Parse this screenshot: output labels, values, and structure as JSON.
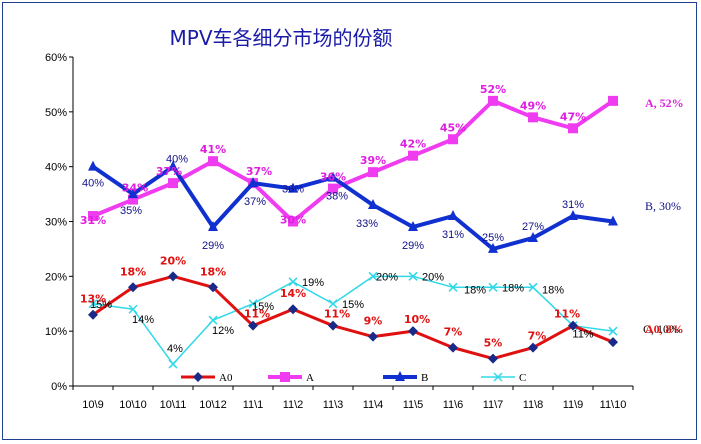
{
  "chart_data": {
    "type": "line",
    "title": "MPV车各细分市场的份额",
    "categories": [
      "10\\9",
      "10\\10",
      "10\\11",
      "10\\12",
      "11\\1",
      "11\\2",
      "11\\3",
      "11\\4",
      "11\\5",
      "11\\6",
      "11\\7",
      "11\\8",
      "11\\9",
      "11\\10"
    ],
    "ylim": [
      0,
      60
    ],
    "y_ticks": [
      "0%",
      "10%",
      "20%",
      "30%",
      "40%",
      "50%",
      "60%"
    ],
    "grid": false,
    "legend_position": "bottom",
    "series": [
      {
        "name": "A0",
        "color": "#e01010",
        "values": [
          13,
          18,
          20,
          18,
          11,
          14,
          11,
          9,
          10,
          7,
          5,
          7,
          11,
          8
        ],
        "labels": [
          "13%",
          "18%",
          "20%",
          "18%",
          "11%",
          "14%",
          "11%",
          "9%",
          "10%",
          "7%",
          "5%",
          "7%",
          "11%",
          ""
        ],
        "end_label": "A0, 8%"
      },
      {
        "name": "A",
        "color": "#f03cf0",
        "values": [
          31,
          34,
          37,
          41,
          37,
          30,
          36,
          39,
          42,
          45,
          52,
          49,
          47,
          52
        ],
        "labels": [
          "31%",
          "34%",
          "37%",
          "41%",
          "37%",
          "30%",
          "36%",
          "39%",
          "42%",
          "45%",
          "52%",
          "49%",
          "47%",
          ""
        ],
        "end_label": "A, 52%"
      },
      {
        "name": "B",
        "color": "#1030d0",
        "values": [
          40,
          35,
          40,
          29,
          37,
          36,
          38,
          33,
          29,
          31,
          25,
          27,
          31,
          30
        ],
        "labels": [
          "40%",
          "35%",
          "40%",
          "29%",
          "37%",
          "36%",
          "38%",
          "33%",
          "29%",
          "31%",
          "25%",
          "27%",
          "31%",
          ""
        ],
        "end_label": "B, 30%"
      },
      {
        "name": "C",
        "color": "#30d8e8",
        "values": [
          15,
          14,
          4,
          12,
          15,
          19,
          15,
          20,
          20,
          18,
          18,
          18,
          11,
          10
        ],
        "labels": [
          "15%",
          "14%",
          "4%",
          "12%",
          "15%",
          "19%",
          "15%",
          "20%",
          "20%",
          "18%",
          "18%",
          "18%",
          "11%",
          ""
        ],
        "end_label": "C, 10%"
      }
    ]
  }
}
